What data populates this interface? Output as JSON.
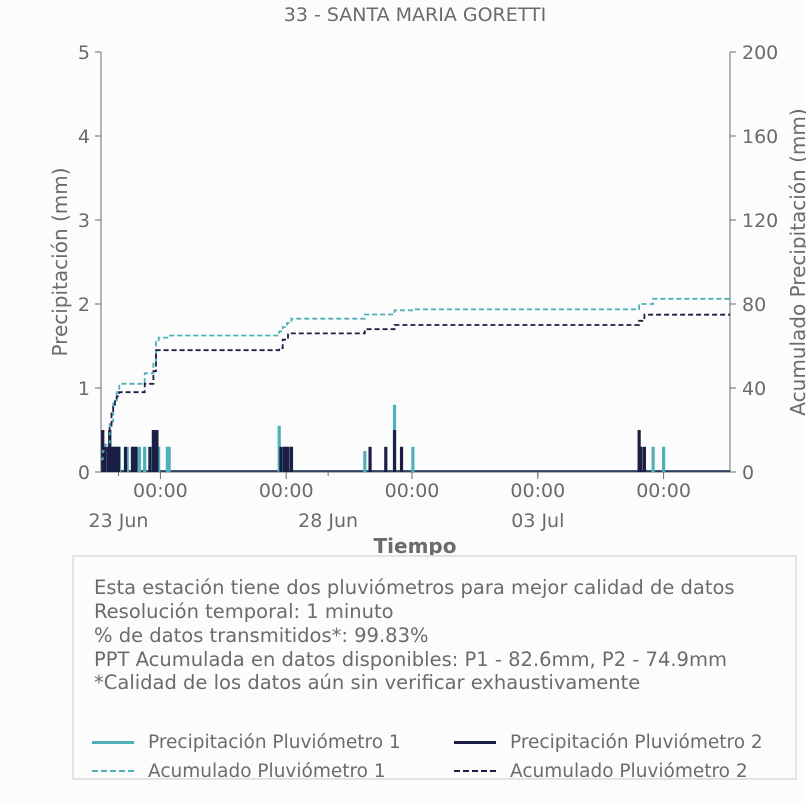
{
  "chart_data": {
    "type": "bar",
    "title": "33 - SANTA MARIA GORETTI",
    "xlabel": "Tiempo",
    "ylabel": "Precipitación (mm)",
    "y2label": "Acumulado Precipitación (mm)",
    "ylim": [
      0,
      5
    ],
    "y2lim": [
      0,
      200
    ],
    "yticks": [
      "0",
      "1",
      "2",
      "3",
      "4",
      "5"
    ],
    "y2ticks": [
      "0",
      "40",
      "80",
      "120",
      "160",
      "200"
    ],
    "xlim": [
      "2025-06-22T14:00",
      "2025-07-07T14:00"
    ],
    "xticks": [
      {
        "x": "2025-06-24T00:00",
        "label": "00:00"
      },
      {
        "x": "2025-06-27T00:00",
        "label": "00:00"
      },
      {
        "x": "2025-06-30T00:00",
        "label": "00:00"
      },
      {
        "x": "2025-07-03T00:00",
        "label": "00:00"
      },
      {
        "x": "2025-07-06T00:00",
        "label": "00:00"
      }
    ],
    "date_labels": [
      {
        "x": "2025-06-23T00:00",
        "label": "23 Jun"
      },
      {
        "x": "2025-06-28T00:00",
        "label": "28 Jun"
      },
      {
        "x": "2025-07-03T00:00",
        "label": "03 Jul"
      }
    ],
    "grid": false,
    "series": [
      {
        "name": "Precipitación Pluviómetro 1",
        "type": "bar",
        "axis": "left",
        "color": "#4fb0b8",
        "points": [
          {
            "x": "2025-06-22T15:00",
            "y": 0.3
          },
          {
            "x": "2025-06-22T16:30",
            "y": 0.3
          },
          {
            "x": "2025-06-22T19:00",
            "y": 0.5
          },
          {
            "x": "2025-06-22T21:00",
            "y": 0.3
          },
          {
            "x": "2025-06-22T23:00",
            "y": 0.3
          },
          {
            "x": "2025-06-23T00:30",
            "y": 0.3
          },
          {
            "x": "2025-06-23T05:00",
            "y": 0.3
          },
          {
            "x": "2025-06-23T11:00",
            "y": 0.3
          },
          {
            "x": "2025-06-23T12:00",
            "y": 0.3
          },
          {
            "x": "2025-06-23T15:00",
            "y": 0.3
          },
          {
            "x": "2025-06-23T20:00",
            "y": 0.5
          },
          {
            "x": "2025-06-23T21:30",
            "y": 0.5
          },
          {
            "x": "2025-06-23T23:00",
            "y": 0.3
          },
          {
            "x": "2025-06-24T04:00",
            "y": 0.3
          },
          {
            "x": "2025-06-24T05:00",
            "y": 0.3
          },
          {
            "x": "2025-06-26T20:00",
            "y": 0.55
          },
          {
            "x": "2025-06-26T22:00",
            "y": 0.3
          },
          {
            "x": "2025-06-27T00:30",
            "y": 0.3
          },
          {
            "x": "2025-06-27T03:00",
            "y": 0.3
          },
          {
            "x": "2025-06-28T21:00",
            "y": 0.25
          },
          {
            "x": "2025-06-29T14:00",
            "y": 0.8
          },
          {
            "x": "2025-06-30T00:30",
            "y": 0.3
          },
          {
            "x": "2025-07-05T18:00",
            "y": 0.3
          },
          {
            "x": "2025-07-06T00:00",
            "y": 0.3
          }
        ]
      },
      {
        "name": "Precipitación Pluviómetro 2",
        "type": "bar",
        "axis": "left",
        "color": "#1c1f45",
        "points": [
          {
            "x": "2025-06-22T15:00",
            "y": 0.5
          },
          {
            "x": "2025-06-22T16:00",
            "y": 0.3
          },
          {
            "x": "2025-06-22T18:00",
            "y": 0.3
          },
          {
            "x": "2025-06-22T19:00",
            "y": 0.5
          },
          {
            "x": "2025-06-22T20:00",
            "y": 0.3
          },
          {
            "x": "2025-06-22T21:00",
            "y": 0.3
          },
          {
            "x": "2025-06-22T22:00",
            "y": 0.3
          },
          {
            "x": "2025-06-22T23:00",
            "y": 0.3
          },
          {
            "x": "2025-06-23T00:00",
            "y": 0.3
          },
          {
            "x": "2025-06-23T04:00",
            "y": 0.3
          },
          {
            "x": "2025-06-23T08:00",
            "y": 0.3
          },
          {
            "x": "2025-06-23T09:00",
            "y": 0.3
          },
          {
            "x": "2025-06-23T10:00",
            "y": 0.3
          },
          {
            "x": "2025-06-23T18:00",
            "y": 0.3
          },
          {
            "x": "2025-06-23T20:00",
            "y": 0.5
          },
          {
            "x": "2025-06-23T21:00",
            "y": 0.5
          },
          {
            "x": "2025-06-23T22:00",
            "y": 0.5
          },
          {
            "x": "2025-06-26T21:00",
            "y": 0.3
          },
          {
            "x": "2025-06-26T23:00",
            "y": 0.3
          },
          {
            "x": "2025-06-27T00:00",
            "y": 0.3
          },
          {
            "x": "2025-06-27T01:00",
            "y": 0.3
          },
          {
            "x": "2025-06-27T03:00",
            "y": 0.3
          },
          {
            "x": "2025-06-29T00:00",
            "y": 0.3
          },
          {
            "x": "2025-06-29T09:00",
            "y": 0.3
          },
          {
            "x": "2025-06-29T14:00",
            "y": 0.5
          },
          {
            "x": "2025-06-29T18:00",
            "y": 0.3
          },
          {
            "x": "2025-07-05T10:00",
            "y": 0.5
          },
          {
            "x": "2025-07-05T11:00",
            "y": 0.3
          },
          {
            "x": "2025-07-05T13:00",
            "y": 0.3
          }
        ]
      },
      {
        "name": "Acumulado Pluviómetro 1",
        "type": "step",
        "axis": "right",
        "color": "#4fb0b8",
        "dash": true,
        "points": [
          {
            "x": "2025-06-22T14:00",
            "y": 6
          },
          {
            "x": "2025-06-22T15:00",
            "y": 10
          },
          {
            "x": "2025-06-22T16:30",
            "y": 13
          },
          {
            "x": "2025-06-22T19:00",
            "y": 24
          },
          {
            "x": "2025-06-22T21:00",
            "y": 34
          },
          {
            "x": "2025-06-22T23:00",
            "y": 38
          },
          {
            "x": "2025-06-23T00:30",
            "y": 42
          },
          {
            "x": "2025-06-23T15:00",
            "y": 47
          },
          {
            "x": "2025-06-23T20:00",
            "y": 52
          },
          {
            "x": "2025-06-23T21:30",
            "y": 62
          },
          {
            "x": "2025-06-23T23:00",
            "y": 64
          },
          {
            "x": "2025-06-24T04:00",
            "y": 65
          },
          {
            "x": "2025-06-26T20:00",
            "y": 67
          },
          {
            "x": "2025-06-26T22:00",
            "y": 69
          },
          {
            "x": "2025-06-27T00:30",
            "y": 71
          },
          {
            "x": "2025-06-27T03:00",
            "y": 73
          },
          {
            "x": "2025-06-28T21:00",
            "y": 75
          },
          {
            "x": "2025-06-29T14:00",
            "y": 77
          },
          {
            "x": "2025-06-30T00:30",
            "y": 77.5
          },
          {
            "x": "2025-07-05T10:00",
            "y": 80
          },
          {
            "x": "2025-07-05T18:00",
            "y": 82.5
          },
          {
            "x": "2025-07-07T14:00",
            "y": 82.6
          }
        ]
      },
      {
        "name": "Acumulado Pluviómetro 2",
        "type": "step",
        "axis": "right",
        "color": "#1c1f45",
        "dash": true,
        "points": [
          {
            "x": "2025-06-22T14:00",
            "y": 4
          },
          {
            "x": "2025-06-22T15:00",
            "y": 8
          },
          {
            "x": "2025-06-22T16:30",
            "y": 12
          },
          {
            "x": "2025-06-22T19:00",
            "y": 22
          },
          {
            "x": "2025-06-22T20:00",
            "y": 28
          },
          {
            "x": "2025-06-22T21:00",
            "y": 31
          },
          {
            "x": "2025-06-22T22:00",
            "y": 34
          },
          {
            "x": "2025-06-22T23:00",
            "y": 36
          },
          {
            "x": "2025-06-23T00:30",
            "y": 38
          },
          {
            "x": "2025-06-23T15:00",
            "y": 42
          },
          {
            "x": "2025-06-23T20:00",
            "y": 48
          },
          {
            "x": "2025-06-23T21:30",
            "y": 58
          },
          {
            "x": "2025-06-26T20:00",
            "y": 59
          },
          {
            "x": "2025-06-26T22:00",
            "y": 63
          },
          {
            "x": "2025-06-27T01:00",
            "y": 66
          },
          {
            "x": "2025-06-28T21:00",
            "y": 68
          },
          {
            "x": "2025-06-29T14:00",
            "y": 70
          },
          {
            "x": "2025-07-05T10:00",
            "y": 72
          },
          {
            "x": "2025-07-05T13:00",
            "y": 74.9
          },
          {
            "x": "2025-07-07T14:00",
            "y": 74.9
          }
        ]
      }
    ]
  },
  "info": {
    "line1": "Esta estación tiene dos pluviómetros para mejor calidad de datos",
    "line2": "Resolución temporal: 1 minuto",
    "line3": "% de datos transmitidos*: 99.83%",
    "line4": "PPT Acumulada en datos disponibles: P1 - 82.6mm, P2 - 74.9mm",
    "line5": "*Calidad de los datos aún sin verificar exhaustivamente"
  },
  "legend": {
    "p1": "Precipitación Pluviómetro 1",
    "p2": "Precipitación Pluviómetro 2",
    "a1": "Acumulado Pluviómetro 1",
    "a2": "Acumulado Pluviómetro 2"
  },
  "colors": {
    "pluvio1": "#4fb0b8",
    "pluvio2": "#1c1f45",
    "text": "#6b6b6b",
    "axis": "#6b6b6b"
  }
}
